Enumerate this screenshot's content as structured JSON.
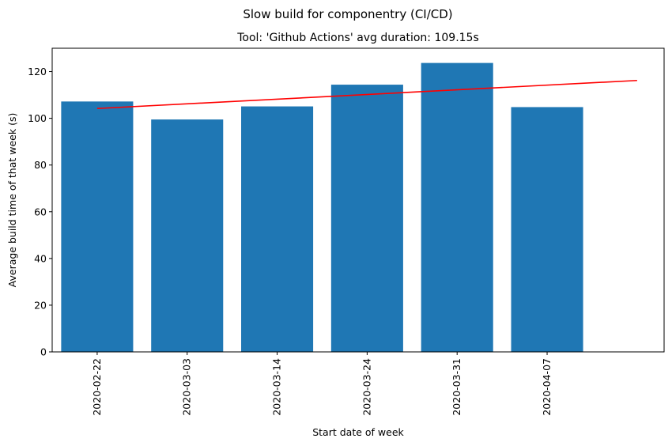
{
  "figure": {
    "suptitle": "Slow build for componentry (CI/CD)",
    "title": "Tool: 'Github Actions' avg duration: 109.15s"
  },
  "chart_data": {
    "type": "bar",
    "title": "Tool: 'Github Actions' avg duration: 109.15s",
    "xlabel": "Start date of week",
    "ylabel": "Average build time of that week (s)",
    "categories": [
      "2020-02-22",
      "2020-03-03",
      "2020-03-14",
      "2020-03-24",
      "2020-03-31",
      "2020-04-07"
    ],
    "values": [
      107.2,
      99.5,
      105.1,
      114.4,
      123.7,
      104.8
    ],
    "bar_color": "#1f77b4",
    "trendline": {
      "color": "#ff0000",
      "x_start_index": 0,
      "x_end_index": 6,
      "y_start": 104.2,
      "y_end": 116.2
    },
    "ylim": [
      0,
      130
    ],
    "yticks": [
      0,
      20,
      40,
      60,
      80,
      100,
      120
    ],
    "xlim": [
      -0.5,
      6.3
    ],
    "grid": false
  }
}
